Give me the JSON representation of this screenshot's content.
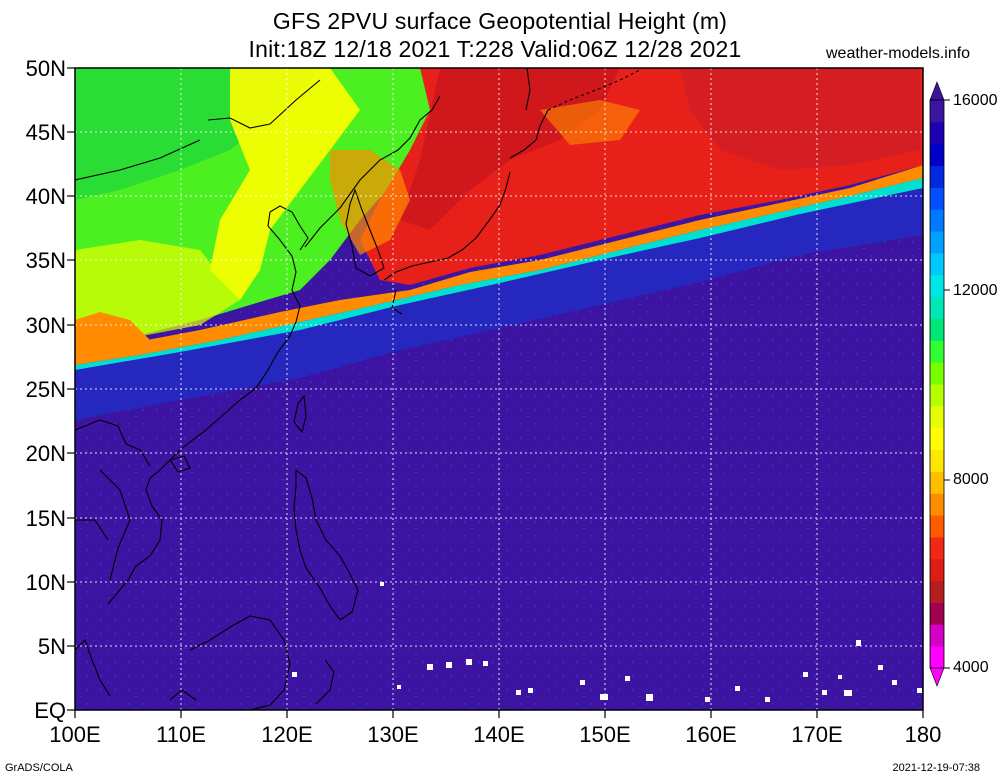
{
  "title": {
    "line1": "GFS 2PVU surface Geopotential Height (m)",
    "line2": "Init:18Z 12/18 2021 T:228 Valid:06Z 12/28 2021"
  },
  "credit": "weather-models.info",
  "map": {
    "lat_labels": [
      "50N",
      "45N",
      "40N",
      "35N",
      "30N",
      "25N",
      "20N",
      "15N",
      "10N",
      "5N",
      "EQ"
    ],
    "lon_labels": [
      "100E",
      "110E",
      "120E",
      "130E",
      "140E",
      "150E",
      "160E",
      "170E",
      "180"
    ],
    "extent": {
      "lon": [
        100,
        180
      ],
      "lat": [
        0,
        50
      ]
    }
  },
  "colorbar": {
    "labels": [
      "16000",
      "12000",
      "8000",
      "4000"
    ],
    "colors": [
      "#ff00ff",
      "#d400c8",
      "#a00050",
      "#b41e1e",
      "#dc1e14",
      "#f02814",
      "#ff5a00",
      "#ff8c00",
      "#ffbe00",
      "#ffe600",
      "#ffff00",
      "#e6ff00",
      "#b4ff00",
      "#78ff00",
      "#32ff32",
      "#00e678",
      "#00e6b4",
      "#00e6e6",
      "#00c8ff",
      "#00a0ff",
      "#0078ff",
      "#0050ff",
      "#0028dc",
      "#0000c8",
      "#1e00b4",
      "#3c14a0"
    ]
  },
  "footer": {
    "left": "GrADS/COLA",
    "right": "2021-12-19-07:38"
  }
}
